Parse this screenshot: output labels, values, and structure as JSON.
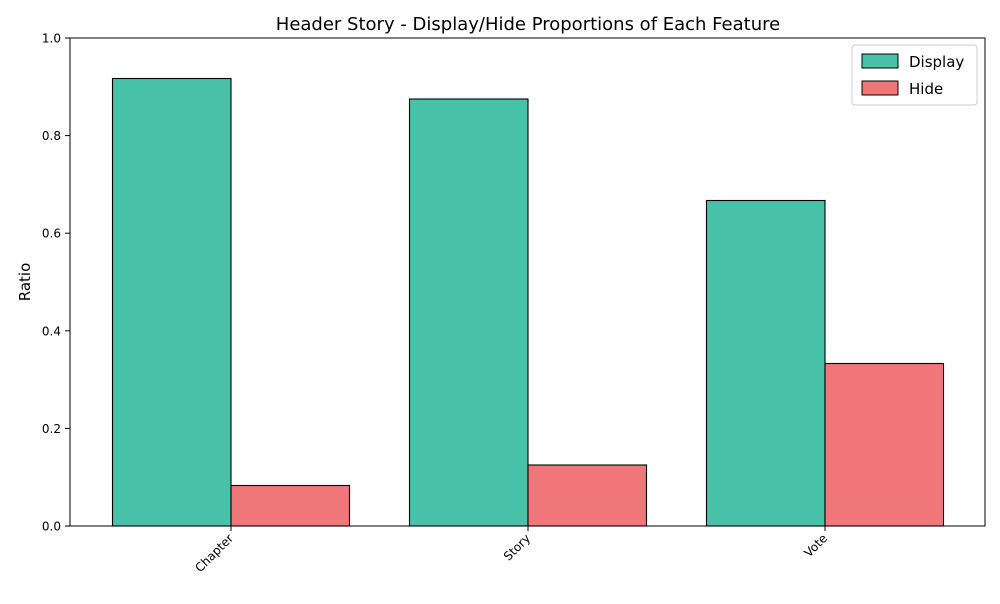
{
  "chart_data": {
    "type": "bar",
    "title": "Header Story - Display/Hide Proportions of Each Feature",
    "xlabel": "",
    "ylabel": "Ratio",
    "categories": [
      "Chapter",
      "Story",
      "Vote"
    ],
    "series": [
      {
        "name": "Display",
        "color": "#48c1a9",
        "values": [
          0.917,
          0.875,
          0.667
        ]
      },
      {
        "name": "Hide",
        "color": "#f07679",
        "values": [
          0.083,
          0.125,
          0.333
        ]
      }
    ],
    "ylim": [
      0,
      1
    ],
    "yticks": [
      "0.0",
      "0.2",
      "0.4",
      "0.6",
      "0.8",
      "1.0"
    ],
    "grid": false,
    "legend_position": "top-right"
  }
}
